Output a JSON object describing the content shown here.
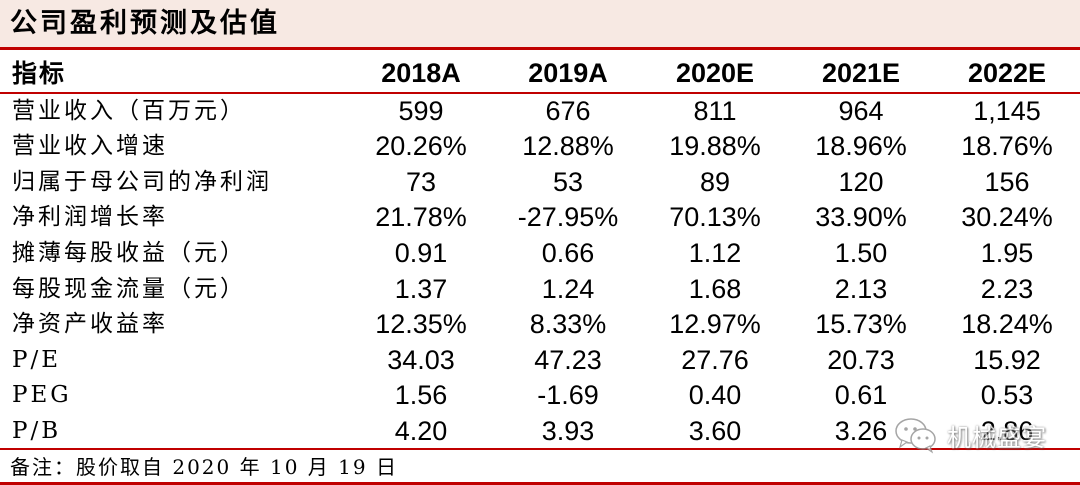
{
  "title": "公司盈利预测及估值",
  "table": {
    "header": {
      "label": "指标",
      "columns": [
        "2018A",
        "2019A",
        "2020E",
        "2021E",
        "2022E"
      ]
    },
    "rows": [
      {
        "label": "营业收入（百万元）",
        "values": [
          "599",
          "676",
          "811",
          "964",
          "1,145"
        ]
      },
      {
        "label": "营业收入增速",
        "values": [
          "20.26%",
          "12.88%",
          "19.88%",
          "18.96%",
          "18.76%"
        ]
      },
      {
        "label": "归属于母公司的净利润",
        "values": [
          "73",
          "53",
          "89",
          "120",
          "156"
        ]
      },
      {
        "label": "净利润增长率",
        "values": [
          "21.78%",
          "-27.95%",
          "70.13%",
          "33.90%",
          "30.24%"
        ]
      },
      {
        "label": "摊薄每股收益（元）",
        "values": [
          "0.91",
          "0.66",
          "1.12",
          "1.50",
          "1.95"
        ]
      },
      {
        "label": "每股现金流量（元）",
        "values": [
          "1.37",
          "1.24",
          "1.68",
          "2.13",
          "2.23"
        ]
      },
      {
        "label": "净资产收益率",
        "values": [
          "12.35%",
          "8.33%",
          "12.97%",
          "15.73%",
          "18.24%"
        ]
      },
      {
        "label": "P/E",
        "values": [
          "34.03",
          "47.23",
          "27.76",
          "20.73",
          "15.92"
        ]
      },
      {
        "label": "PEG",
        "values": [
          "1.56",
          "-1.69",
          "0.40",
          "0.61",
          "0.53"
        ]
      },
      {
        "label": "P/B",
        "values": [
          "4.20",
          "3.93",
          "3.60",
          "3.26",
          "2.86"
        ]
      }
    ]
  },
  "note": "备注：股价取自 2020 年 10 月 19 日",
  "watermark": {
    "text": "机械盛宴",
    "icon": "wechat-icon"
  },
  "colors": {
    "accent": "#c00000",
    "title_background": "#f7e9e3"
  }
}
